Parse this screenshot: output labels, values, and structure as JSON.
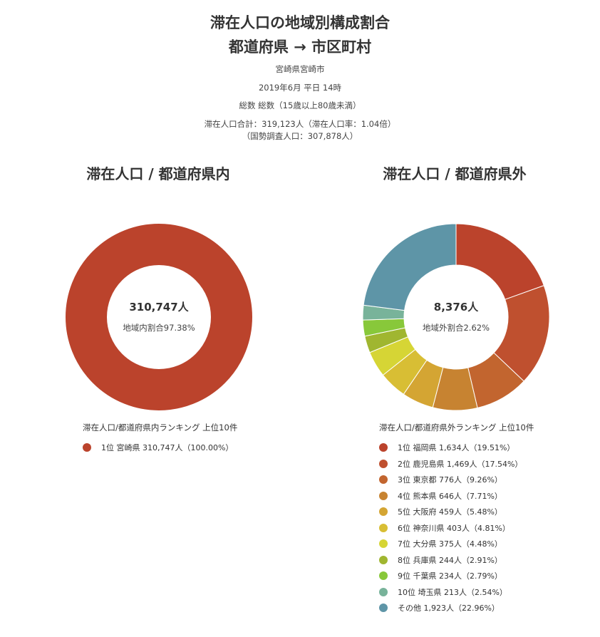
{
  "header": {
    "title1": "滞在人口の地域別構成割合",
    "title2": "都道府県 → 市区町村",
    "region": "宮崎県宮崎市",
    "period": "2019年6月 平日 14時",
    "segment": "総数 総数（15歳以上80歳未満）",
    "total": "滞在人口合計：319,123人（滞在人口率：1.04倍）",
    "census": "（国勢調査人口：307,878人）"
  },
  "chart_data": [
    {
      "type": "pie",
      "title": "滞在人口 / 都道府県内",
      "center_value": "310,747人",
      "center_label": "地域内割合97.38%",
      "ranking_title": "滞在人口/都道府県内ランキング 上位10件",
      "slices": [
        {
          "label": "1位 宮崎県 310,747人（100.00%）",
          "value": 100.0,
          "color": "#bb432c"
        }
      ]
    },
    {
      "type": "pie",
      "title": "滞在人口 / 都道府県外",
      "center_value": "8,376人",
      "center_label": "地域外割合2.62%",
      "ranking_title": "滞在人口/都道府県外ランキング 上位10件",
      "slices": [
        {
          "label": "1位 福岡県 1,634人（19.51%）",
          "value": 19.51,
          "color": "#bb432c"
        },
        {
          "label": "2位 鹿児島県 1,469人（17.54%）",
          "value": 17.54,
          "color": "#bf502f"
        },
        {
          "label": "3位 東京都 776人（9.26%）",
          "value": 9.26,
          "color": "#c2652f"
        },
        {
          "label": "4位 熊本県 646人（7.71%）",
          "value": 7.71,
          "color": "#c78331"
        },
        {
          "label": "5位 大阪府 459人（5.48%）",
          "value": 5.48,
          "color": "#d4a533"
        },
        {
          "label": "6位 神奈川県 403人（4.81%）",
          "value": 4.81,
          "color": "#d8be34"
        },
        {
          "label": "7位 大分県 375人（4.48%）",
          "value": 4.48,
          "color": "#d6d535"
        },
        {
          "label": "8位 兵庫県 244人（2.91%）",
          "value": 2.91,
          "color": "#a0b630"
        },
        {
          "label": "9位 千葉県 234人（2.79%）",
          "value": 2.79,
          "color": "#88c83a"
        },
        {
          "label": "10位 埼玉県 213人（2.54%）",
          "value": 2.54,
          "color": "#78b39a"
        },
        {
          "label": "その他 1,923人（22.96%）",
          "value": 22.96,
          "color": "#5e95a7"
        }
      ]
    }
  ]
}
